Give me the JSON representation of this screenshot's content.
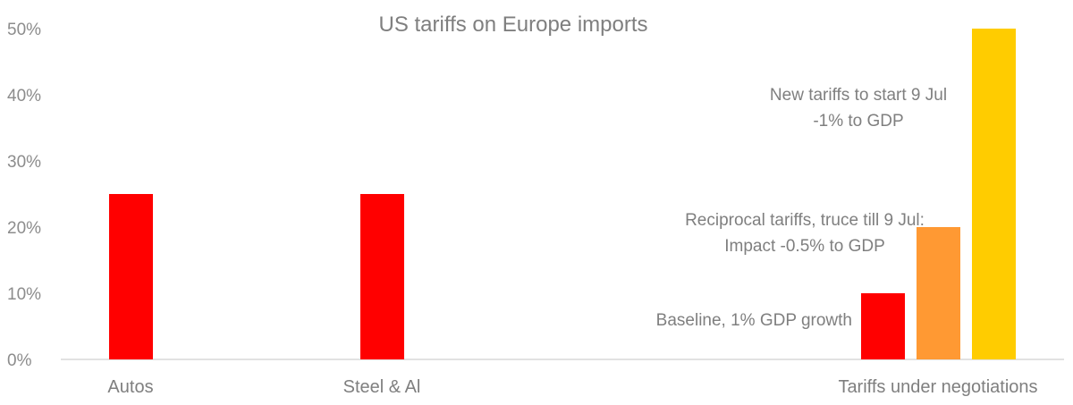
{
  "chart_data": {
    "type": "bar",
    "title": "US tariffs on Europe imports",
    "xlabel": "",
    "ylabel": "",
    "ylim": [
      0,
      50
    ],
    "yticks": [
      "0%",
      "10%",
      "20%",
      "30%",
      "40%",
      "50%"
    ],
    "grid": false,
    "legend": "none",
    "categories": [
      "Autos",
      "Steel & Al",
      "Tariffs under negotiations"
    ],
    "bars": [
      {
        "category": "Autos",
        "value": 25,
        "color": "#ff0000"
      },
      {
        "category": "Steel & Al",
        "value": 25,
        "color": "#ff0000"
      },
      {
        "category": "Tariffs under negotiations",
        "value": 10,
        "color": "#ff0000"
      },
      {
        "category": "Tariffs under negotiations",
        "value": 20,
        "color": "#ff9933"
      },
      {
        "category": "Tariffs under negotiations",
        "value": 50,
        "color": "#ffcc00"
      }
    ],
    "annotations": [
      {
        "lines": [
          "Baseline, 1% GDP growth"
        ]
      },
      {
        "lines": [
          "Reciprocal tariffs, truce till 9 Jul:",
          "Impact -0.5% to GDP"
        ]
      },
      {
        "lines": [
          "New tariffs to start 9 Jul",
          "-1% to GDP"
        ]
      }
    ]
  }
}
